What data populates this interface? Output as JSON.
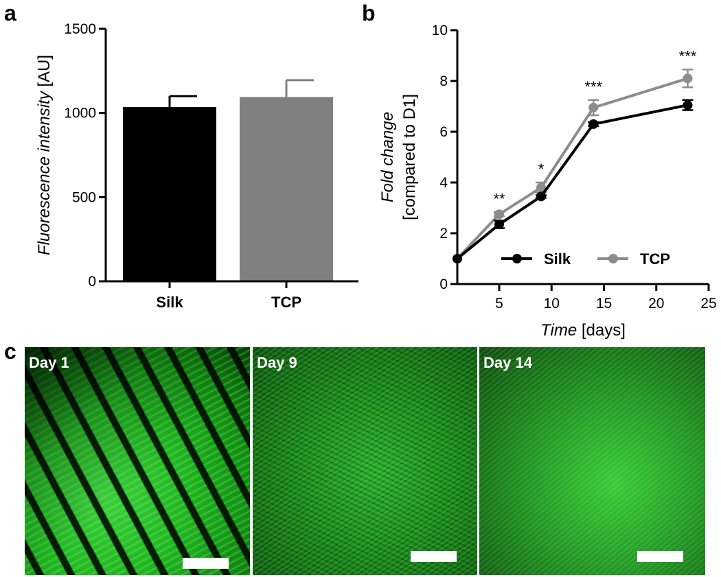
{
  "panels": {
    "a": "a",
    "b": "b",
    "c": "c"
  },
  "chart_data": [
    {
      "type": "bar",
      "panel": "a",
      "categories": [
        "Silk",
        "TCP"
      ],
      "values": [
        1035,
        1095
      ],
      "errors": [
        65,
        100
      ],
      "colors": [
        "#000000",
        "#808080"
      ],
      "ylabel_italic": "Fluorescence intensity",
      "ylabel_unit": " [AU]",
      "ylim": [
        0,
        1500
      ],
      "yticks": [
        0,
        500,
        1000,
        1500
      ]
    },
    {
      "type": "line",
      "panel": "b",
      "x": [
        1,
        5,
        9,
        14,
        23
      ],
      "series": [
        {
          "name": "Silk",
          "color": "#000000",
          "values": [
            1.0,
            2.35,
            3.45,
            6.3,
            7.05
          ],
          "errors": [
            0,
            0.15,
            0.05,
            0.08,
            0.2
          ]
        },
        {
          "name": "TCP",
          "color": "#8c8c8c",
          "values": [
            1.0,
            2.75,
            3.8,
            6.95,
            8.1
          ],
          "errors": [
            0,
            0.08,
            0.2,
            0.3,
            0.35
          ]
        }
      ],
      "significance": [
        "",
        "**",
        "*",
        "***",
        "***"
      ],
      "ylabel_italic": "Fold change",
      "ylabel_line2": "[compared to D1]",
      "xlabel_italic": "Time",
      "xlabel_unit": " [days]",
      "xlim": [
        1,
        25
      ],
      "ylim": [
        0,
        10
      ],
      "xticks": [
        5,
        10,
        15,
        20,
        25
      ],
      "yticks": [
        0,
        2,
        4,
        6,
        8,
        10
      ],
      "legend_position": "bottom-right"
    }
  ],
  "micrographs": [
    {
      "label": "Day 1"
    },
    {
      "label": "Day 9"
    },
    {
      "label": "Day 14"
    }
  ]
}
